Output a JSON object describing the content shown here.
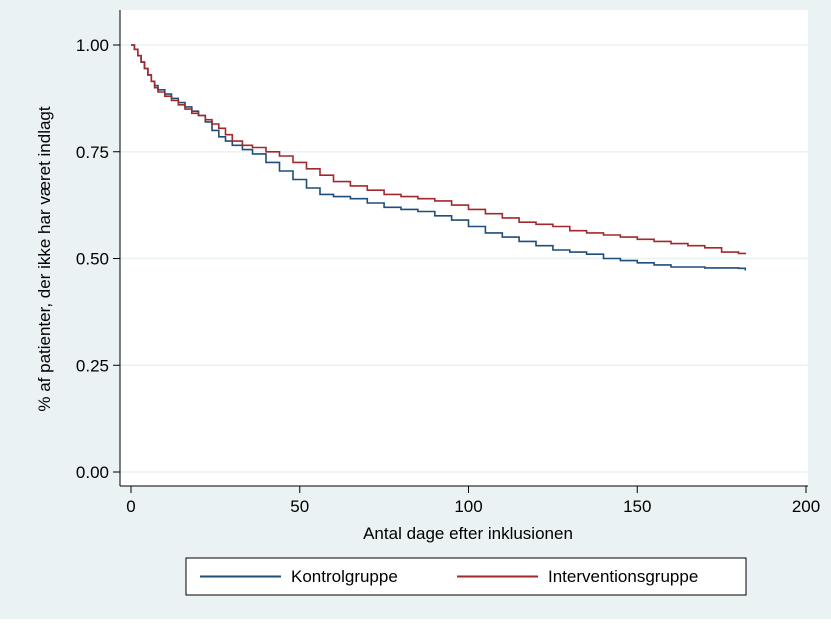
{
  "chart_data": {
    "type": "line",
    "title": "",
    "xlabel": "Antal dage efter inklusionen",
    "ylabel": "% af patienter, der ikke har været indlagt",
    "xlim": [
      0,
      200
    ],
    "ylim": [
      0,
      1
    ],
    "x_ticks": [
      "0",
      "50",
      "100",
      "150",
      "200"
    ],
    "y_ticks": [
      "0.00",
      "0.25",
      "0.50",
      "0.75",
      "1.00"
    ],
    "grid": true,
    "legend_position": "bottom",
    "colors": {
      "plot_background": "#eaf2f3",
      "grid": "#ffffff"
    },
    "series": [
      {
        "name": "Kontrolgruppe",
        "color": "#1f4e79",
        "step": true,
        "points": [
          [
            0,
            1.0
          ],
          [
            1,
            0.99
          ],
          [
            2,
            0.975
          ],
          [
            3,
            0.96
          ],
          [
            4,
            0.945
          ],
          [
            5,
            0.93
          ],
          [
            6,
            0.915
          ],
          [
            7,
            0.905
          ],
          [
            8,
            0.895
          ],
          [
            10,
            0.885
          ],
          [
            12,
            0.875
          ],
          [
            14,
            0.865
          ],
          [
            16,
            0.855
          ],
          [
            18,
            0.845
          ],
          [
            20,
            0.835
          ],
          [
            22,
            0.82
          ],
          [
            24,
            0.8
          ],
          [
            26,
            0.785
          ],
          [
            28,
            0.775
          ],
          [
            30,
            0.765
          ],
          [
            33,
            0.755
          ],
          [
            36,
            0.745
          ],
          [
            40,
            0.725
          ],
          [
            44,
            0.705
          ],
          [
            48,
            0.685
          ],
          [
            52,
            0.665
          ],
          [
            56,
            0.65
          ],
          [
            60,
            0.645
          ],
          [
            65,
            0.64
          ],
          [
            70,
            0.63
          ],
          [
            75,
            0.62
          ],
          [
            80,
            0.615
          ],
          [
            85,
            0.61
          ],
          [
            90,
            0.6
          ],
          [
            95,
            0.59
          ],
          [
            100,
            0.575
          ],
          [
            105,
            0.56
          ],
          [
            110,
            0.55
          ],
          [
            115,
            0.54
          ],
          [
            120,
            0.53
          ],
          [
            125,
            0.52
          ],
          [
            130,
            0.515
          ],
          [
            135,
            0.51
          ],
          [
            140,
            0.5
          ],
          [
            145,
            0.495
          ],
          [
            150,
            0.49
          ],
          [
            155,
            0.485
          ],
          [
            160,
            0.48
          ],
          [
            170,
            0.478
          ],
          [
            180,
            0.477
          ],
          [
            182,
            0.472
          ]
        ]
      },
      {
        "name": "Interventionsgruppe",
        "color": "#a3282c",
        "step": true,
        "points": [
          [
            0,
            1.0
          ],
          [
            1,
            0.99
          ],
          [
            2,
            0.975
          ],
          [
            3,
            0.96
          ],
          [
            4,
            0.945
          ],
          [
            5,
            0.93
          ],
          [
            6,
            0.915
          ],
          [
            7,
            0.9
          ],
          [
            8,
            0.89
          ],
          [
            10,
            0.88
          ],
          [
            12,
            0.87
          ],
          [
            14,
            0.86
          ],
          [
            16,
            0.85
          ],
          [
            18,
            0.84
          ],
          [
            20,
            0.835
          ],
          [
            22,
            0.825
          ],
          [
            24,
            0.815
          ],
          [
            26,
            0.805
          ],
          [
            28,
            0.79
          ],
          [
            30,
            0.775
          ],
          [
            33,
            0.765
          ],
          [
            36,
            0.76
          ],
          [
            40,
            0.75
          ],
          [
            44,
            0.74
          ],
          [
            48,
            0.725
          ],
          [
            52,
            0.71
          ],
          [
            56,
            0.695
          ],
          [
            60,
            0.68
          ],
          [
            65,
            0.67
          ],
          [
            70,
            0.66
          ],
          [
            75,
            0.65
          ],
          [
            80,
            0.645
          ],
          [
            85,
            0.64
          ],
          [
            90,
            0.635
          ],
          [
            95,
            0.625
          ],
          [
            100,
            0.615
          ],
          [
            105,
            0.605
          ],
          [
            110,
            0.595
          ],
          [
            115,
            0.585
          ],
          [
            120,
            0.58
          ],
          [
            125,
            0.575
          ],
          [
            130,
            0.565
          ],
          [
            135,
            0.56
          ],
          [
            140,
            0.555
          ],
          [
            145,
            0.55
          ],
          [
            150,
            0.545
          ],
          [
            155,
            0.54
          ],
          [
            160,
            0.535
          ],
          [
            165,
            0.53
          ],
          [
            170,
            0.525
          ],
          [
            175,
            0.515
          ],
          [
            180,
            0.512
          ],
          [
            182,
            0.51
          ]
        ]
      }
    ]
  }
}
